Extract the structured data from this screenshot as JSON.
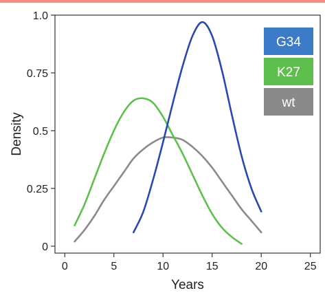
{
  "chart_data": {
    "type": "line",
    "title": "",
    "xlabel": "Years",
    "ylabel": "Density",
    "xlim": [
      -1,
      26
    ],
    "ylim": [
      -0.03,
      1.0
    ],
    "x_ticks": [
      0,
      5,
      10,
      15,
      20,
      25
    ],
    "x_tick_labels": [
      "0",
      "5",
      "10",
      "15",
      "20",
      "25"
    ],
    "y_ticks": [
      0,
      0.25,
      0.5,
      0.75,
      1.0
    ],
    "y_tick_labels": [
      "0",
      "0.25",
      "0.5",
      "0.75",
      "1.0"
    ],
    "grid": false,
    "legend_position": "top-right",
    "series": [
      {
        "name": "G34",
        "color": "#2b47b0",
        "legend_color": "#3b7bc8",
        "x": [
          7,
          8,
          9,
          10,
          11,
          12,
          13,
          14,
          15,
          16,
          17,
          18,
          19,
          20
        ],
        "y": [
          0.06,
          0.15,
          0.29,
          0.45,
          0.62,
          0.78,
          0.91,
          0.97,
          0.91,
          0.76,
          0.57,
          0.39,
          0.25,
          0.15
        ]
      },
      {
        "name": "K27",
        "color": "#5fbf4e",
        "legend_color": "#5fbf4e",
        "x": [
          1,
          2,
          3,
          4,
          5,
          6,
          7,
          8,
          9,
          10,
          11,
          12,
          13,
          14,
          15,
          16,
          17,
          18
        ],
        "y": [
          0.09,
          0.18,
          0.29,
          0.4,
          0.5,
          0.58,
          0.63,
          0.64,
          0.62,
          0.56,
          0.48,
          0.4,
          0.31,
          0.22,
          0.14,
          0.08,
          0.04,
          0.01
        ]
      },
      {
        "name": "wt",
        "color": "#8a8a8a",
        "legend_color": "#8a8a8a",
        "x": [
          1,
          2,
          3,
          4,
          5,
          6,
          7,
          8,
          9,
          10,
          11,
          12,
          13,
          14,
          15,
          16,
          17,
          18,
          19,
          20
        ],
        "y": [
          0.02,
          0.07,
          0.13,
          0.2,
          0.26,
          0.32,
          0.38,
          0.42,
          0.45,
          0.47,
          0.47,
          0.46,
          0.43,
          0.39,
          0.34,
          0.28,
          0.22,
          0.16,
          0.11,
          0.06
        ]
      }
    ]
  }
}
